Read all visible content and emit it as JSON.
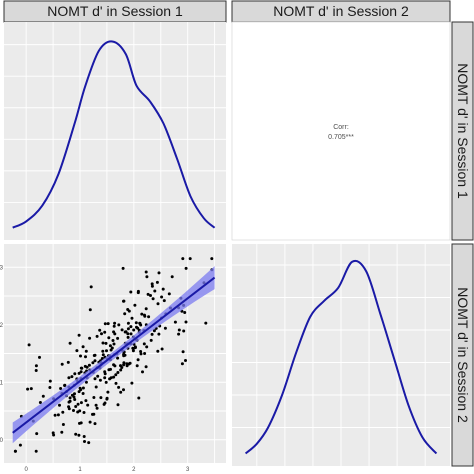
{
  "figure": {
    "strips": {
      "col1": "NOMT d' in Session 1",
      "col2": "NOMT d' in Session 2",
      "row1": "NOMT d' in Session 1",
      "row2": "NOMT d' in Session 2"
    },
    "colors": {
      "panel_bg": "#ebebeb",
      "strip_bg": "#d9d9d9",
      "strip_border": "#333333",
      "grid": "#ffffff",
      "line": "#1a1aa6",
      "band": "#7b7bf0",
      "point": "#000000"
    }
  },
  "chart_data": [
    {
      "type": "density",
      "panel": "row1-col1",
      "variable": "NOMT d' in Session 1",
      "xlim": [
        -0.3,
        3.6
      ],
      "density": {
        "x": [
          -0.25,
          0.0,
          0.3,
          0.6,
          0.9,
          1.1,
          1.35,
          1.6,
          1.85,
          2.05,
          2.3,
          2.55,
          2.8,
          3.05,
          3.3,
          3.5
        ],
        "y": [
          0.02,
          0.04,
          0.09,
          0.19,
          0.35,
          0.47,
          0.58,
          0.61,
          0.57,
          0.47,
          0.42,
          0.35,
          0.24,
          0.12,
          0.05,
          0.02
        ]
      }
    },
    {
      "type": "text",
      "panel": "row1-col2",
      "label": "Corr:",
      "value": "0.705***"
    },
    {
      "type": "scatter",
      "panel": "row2-col1",
      "xlabel": "NOMT d' in Session 1",
      "ylabel": "NOMT d' in Session 2",
      "xlim": [
        -0.3,
        3.6
      ],
      "ylim": [
        -0.3,
        3.3
      ],
      "x_ticks": [
        0,
        1,
        2,
        3
      ],
      "y_ticks": [
        0,
        1,
        2,
        3
      ],
      "fit": {
        "method": "lm",
        "x_range": [
          -0.25,
          3.5
        ],
        "intercept": 0.3,
        "slope": 0.72,
        "ci_halfwidth": [
          0.18,
          0.07,
          0.2
        ]
      }
    },
    {
      "type": "density",
      "panel": "row2-col2",
      "variable": "NOMT d' in Session 2",
      "xlim": [
        -0.3,
        3.3
      ],
      "density": {
        "x": [
          -0.2,
          0.0,
          0.2,
          0.45,
          0.7,
          0.95,
          1.2,
          1.45,
          1.7,
          1.95,
          2.2,
          2.45,
          2.7,
          2.95,
          3.2
        ],
        "y": [
          0.02,
          0.05,
          0.1,
          0.2,
          0.33,
          0.44,
          0.49,
          0.53,
          0.61,
          0.58,
          0.45,
          0.31,
          0.17,
          0.07,
          0.02
        ]
      }
    }
  ]
}
